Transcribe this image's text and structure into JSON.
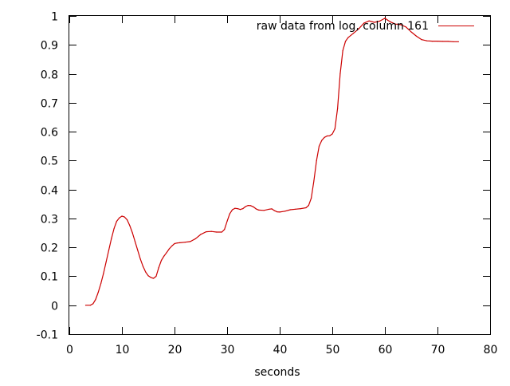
{
  "chart_data": {
    "type": "line",
    "title": "",
    "xlabel": "seconds",
    "ylabel": "",
    "xlim": [
      0,
      80
    ],
    "ylim": [
      -0.1,
      1
    ],
    "xticks": [
      0,
      10,
      20,
      30,
      40,
      50,
      60,
      70,
      80
    ],
    "yticks": [
      -0.1,
      0,
      0.1,
      0.2,
      0.3,
      0.4,
      0.5,
      0.6,
      0.7,
      0.8,
      0.9,
      1
    ],
    "xtick_labels": [
      "0",
      "10",
      "20",
      "30",
      "40",
      "50",
      "60",
      "70",
      "80"
    ],
    "ytick_labels": [
      "-0.1",
      "0",
      "0.1",
      "0.2",
      "0.3",
      "0.4",
      "0.5",
      "0.6",
      "0.7",
      "0.8",
      "0.9",
      "1"
    ],
    "grid": false,
    "legend_position": "top-right",
    "series": [
      {
        "name": "raw data from log, column 161",
        "color": "#cc0000",
        "x": [
          3.1,
          4.0,
          4.5,
          5.0,
          5.5,
          6.0,
          6.5,
          7.0,
          7.5,
          8.0,
          8.5,
          9.0,
          9.5,
          10.0,
          10.5,
          11.0,
          11.5,
          12.0,
          12.5,
          13.0,
          13.5,
          14.0,
          14.5,
          15.0,
          15.5,
          16.0,
          16.5,
          17.0,
          17.5,
          18.0,
          18.5,
          19.0,
          19.5,
          20.0,
          20.5,
          21.0,
          22.0,
          23.0,
          24.0,
          25.0,
          26.0,
          27.0,
          28.0,
          29.0,
          29.5,
          30.0,
          30.5,
          31.0,
          31.5,
          32.0,
          32.5,
          33.0,
          33.5,
          34.0,
          34.5,
          35.0,
          35.5,
          36.0,
          37.0,
          38.0,
          38.5,
          39.0,
          39.5,
          40.0,
          41.0,
          42.0,
          43.0,
          44.0,
          45.0,
          45.5,
          46.0,
          46.5,
          47.0,
          47.5,
          48.0,
          48.5,
          49.0,
          49.5,
          50.0,
          50.5,
          51.0,
          51.5,
          52.0,
          52.5,
          53.0,
          54.0,
          55.0,
          56.0,
          57.0,
          58.0,
          59.0,
          60.0,
          60.5,
          61.0,
          62.0,
          63.0,
          64.0,
          65.0,
          66.0,
          67.0,
          68.0,
          69.0,
          70.0,
          71.0,
          72.0,
          73.0,
          74.0
        ],
        "values": [
          0.0,
          0.0,
          0.005,
          0.02,
          0.045,
          0.075,
          0.11,
          0.15,
          0.19,
          0.23,
          0.265,
          0.29,
          0.302,
          0.308,
          0.305,
          0.295,
          0.275,
          0.25,
          0.22,
          0.19,
          0.16,
          0.135,
          0.115,
          0.102,
          0.096,
          0.093,
          0.1,
          0.13,
          0.155,
          0.17,
          0.182,
          0.195,
          0.205,
          0.213,
          0.215,
          0.216,
          0.218,
          0.22,
          0.23,
          0.245,
          0.254,
          0.255,
          0.253,
          0.253,
          0.262,
          0.29,
          0.316,
          0.33,
          0.335,
          0.334,
          0.331,
          0.334,
          0.341,
          0.345,
          0.344,
          0.34,
          0.333,
          0.329,
          0.328,
          0.332,
          0.333,
          0.327,
          0.323,
          0.322,
          0.325,
          0.33,
          0.332,
          0.334,
          0.337,
          0.345,
          0.37,
          0.43,
          0.5,
          0.55,
          0.57,
          0.58,
          0.585,
          0.586,
          0.592,
          0.61,
          0.68,
          0.8,
          0.88,
          0.912,
          0.925,
          0.94,
          0.955,
          0.975,
          0.983,
          0.978,
          0.982,
          0.992,
          0.986,
          0.98,
          0.972,
          0.97,
          0.962,
          0.945,
          0.93,
          0.918,
          0.914,
          0.913,
          0.913,
          0.912,
          0.912,
          0.911,
          0.911
        ]
      }
    ]
  }
}
